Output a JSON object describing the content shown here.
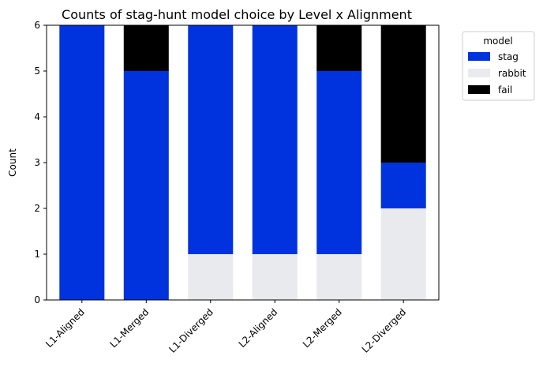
{
  "chart_data": {
    "type": "bar",
    "stacked": true,
    "title": "Counts of stag-hunt model choice by Level x Alignment",
    "xlabel": "",
    "ylabel": "Count",
    "ylim": [
      0,
      6
    ],
    "yticks": [
      0,
      1,
      2,
      3,
      4,
      5,
      6
    ],
    "grid": false,
    "categories": [
      "L1-Aligned",
      "L1-Merged",
      "L1-Diverged",
      "L2-Aligned",
      "L2-Merged",
      "L2-Diverged"
    ],
    "series": [
      {
        "name": "rabbit",
        "color": "#e9eaee",
        "values": [
          0,
          0,
          1,
          1,
          1,
          2
        ]
      },
      {
        "name": "stag",
        "color": "#0033dd",
        "values": [
          6,
          5,
          5,
          5,
          4,
          1
        ]
      },
      {
        "name": "fail",
        "color": "#000000",
        "values": [
          0,
          1,
          0,
          0,
          1,
          3
        ]
      }
    ],
    "legend": {
      "title": "model",
      "placement": "outside-right-top",
      "order": [
        "stag",
        "rabbit",
        "fail"
      ]
    }
  }
}
